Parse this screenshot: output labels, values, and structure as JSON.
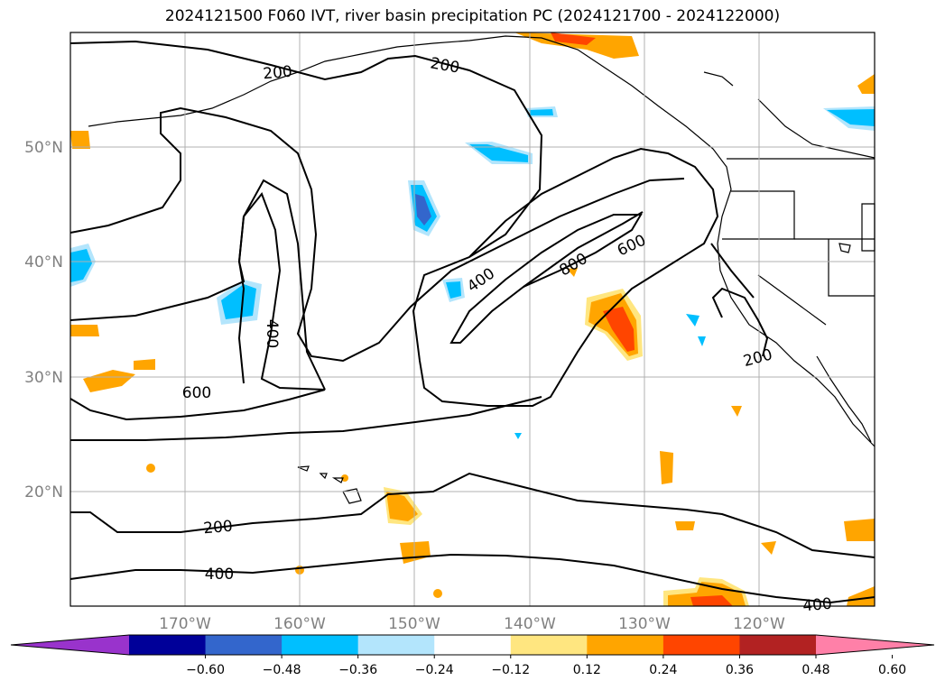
{
  "title": "2024121500 F060 IVT, river basin precipitation PC (2024121700 - 2024122000)",
  "lat_labels": [
    "50°N",
    "40°N",
    "30°N",
    "20°N"
  ],
  "lon_labels": [
    "170°W",
    "160°W",
    "150°W",
    "140°W",
    "130°W",
    "120°W"
  ],
  "contour_labels": {
    "c200_a": "200",
    "c200_b": "200",
    "c200_c": "200",
    "c200_d": "200",
    "c400_a": "400",
    "c400_b": "400",
    "c400_c": "400",
    "c400_d": "400",
    "c600_a": "600",
    "c600_b": "600",
    "c800_a": "800"
  },
  "colorbar": {
    "ticks": [
      "−0.60",
      "−0.48",
      "−0.36",
      "−0.24",
      "−0.12",
      "0.12",
      "0.24",
      "0.36",
      "0.48",
      "0.60"
    ],
    "colors": [
      "#9933cc",
      "#000099",
      "#3366cc",
      "#00bfff",
      "#b3e5fc",
      "#ffffff",
      "#ffe680",
      "#ffa500",
      "#ff4500",
      "#b22222",
      "#ff80a8"
    ]
  }
}
